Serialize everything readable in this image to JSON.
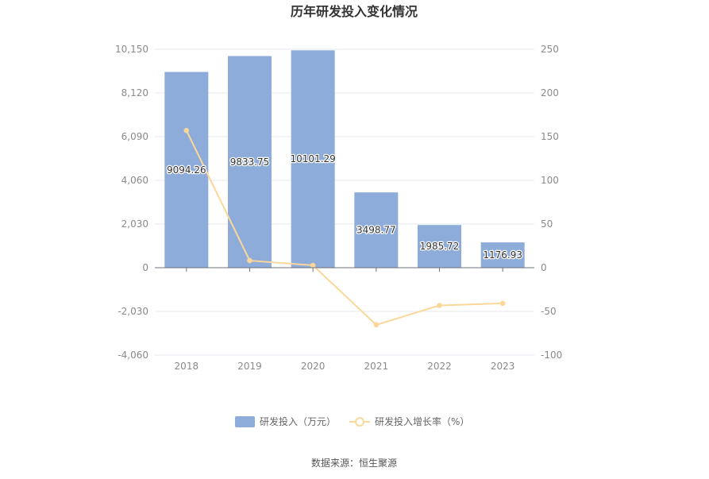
{
  "chart_data": {
    "type": "bar",
    "title": "历年研发投入变化情况",
    "categories": [
      "2018",
      "2019",
      "2020",
      "2021",
      "2022",
      "2023"
    ],
    "series": [
      {
        "name": "研发投入（万元）",
        "type": "bar",
        "axis": "left",
        "values": [
          9094.26,
          9833.75,
          10101.29,
          3498.77,
          1985.72,
          1176.93
        ],
        "labels": [
          "9094.26",
          "9833.75",
          "10101.29",
          "3498.77",
          "1985.72",
          "1176.93"
        ],
        "color": "#8eacd9"
      },
      {
        "name": "研发投入增长率（%）",
        "type": "line",
        "axis": "right",
        "values": [
          157,
          8.1,
          2.7,
          -65.4,
          -43.2,
          -40.8
        ],
        "color": "#fcd79b"
      }
    ],
    "y_left": {
      "ylim": [
        -4060,
        10150
      ],
      "ticks": [
        10150,
        8120,
        6090,
        4060,
        2030,
        0,
        -2030,
        -4060
      ],
      "tick_labels": [
        "10,150",
        "8,120",
        "6,090",
        "4,060",
        "2,030",
        "0",
        "-2,030",
        "-4,060"
      ]
    },
    "y_right": {
      "ylim": [
        -100,
        250
      ],
      "ticks": [
        250,
        200,
        150,
        100,
        50,
        0,
        -50,
        -100
      ],
      "tick_labels": [
        "250",
        "200",
        "150",
        "100",
        "50",
        "0",
        "-50",
        "-100"
      ]
    },
    "grid": true,
    "legend_position": "bottom"
  },
  "source_text": "数据来源：恒生聚源"
}
